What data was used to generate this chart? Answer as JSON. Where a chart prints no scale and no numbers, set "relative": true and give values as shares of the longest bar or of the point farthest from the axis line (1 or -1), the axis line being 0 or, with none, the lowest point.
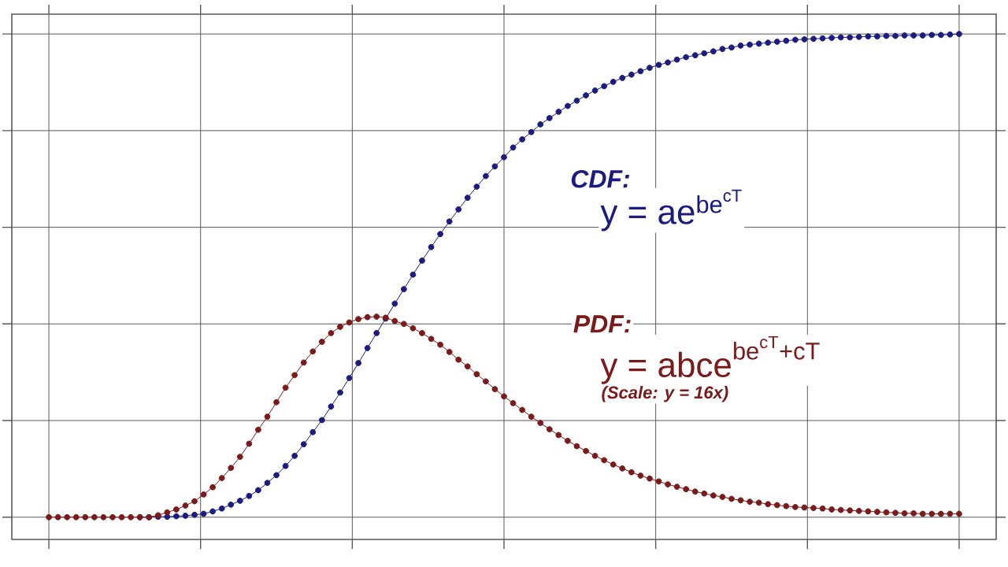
{
  "chart_data": {
    "type": "line",
    "relative": true,
    "grid": true,
    "marker": "circle",
    "tick_labels": false,
    "categories": [
      null,
      null,
      null,
      null,
      null,
      null,
      null,
      null,
      null,
      null,
      null,
      null,
      null,
      null,
      null,
      null,
      null,
      null,
      null,
      null,
      null,
      null,
      null,
      null,
      null,
      null,
      null,
      null,
      null,
      null,
      null,
      null,
      null,
      null,
      null,
      null,
      null,
      null,
      null,
      null,
      null,
      null,
      null,
      null,
      null,
      null,
      null,
      null,
      null,
      null,
      null,
      null,
      null,
      null,
      null,
      null,
      null,
      null,
      null,
      null,
      null,
      null,
      null,
      null,
      null,
      null,
      null,
      null,
      null,
      null,
      null,
      null,
      null,
      null,
      null,
      null,
      null,
      null,
      null,
      null,
      null,
      null,
      null,
      null,
      null,
      null,
      null,
      null,
      null,
      null,
      null,
      null,
      null,
      null,
      null,
      null,
      null,
      null,
      null,
      null,
      null
    ],
    "series": [
      {
        "color": "#1c1c80",
        "values": [
          null,
          null,
          null,
          null,
          null,
          null,
          null,
          null,
          null,
          null,
          0,
          0,
          0.001,
          0.001,
          0.002,
          0.003,
          0.005,
          0.007,
          0.012,
          0.018,
          0.026,
          0.034,
          0.044,
          0.056,
          0.071,
          0.087,
          0.106,
          0.127,
          0.151,
          0.176,
          0.201,
          0.229,
          0.258,
          0.288,
          0.319,
          0.35,
          0.381,
          0.411,
          0.442,
          0.472,
          0.502,
          0.531,
          0.559,
          0.586,
          0.612,
          0.637,
          0.661,
          0.684,
          0.706,
          0.726,
          0.745,
          0.765,
          0.782,
          0.797,
          0.813,
          0.826,
          0.839,
          0.851,
          0.862,
          0.873,
          0.883,
          0.892,
          0.901,
          0.909,
          0.916,
          0.923,
          0.93,
          0.936,
          0.941,
          0.947,
          0.952,
          0.956,
          0.96,
          0.964,
          0.969,
          0.972,
          0.976,
          0.978,
          0.98,
          0.982,
          0.984,
          0.986,
          0.988,
          0.989,
          0.99,
          0.991,
          0.992,
          0.993,
          0.993,
          0.994,
          0.995,
          0.995,
          0.996,
          0.996,
          0.997,
          0.997,
          0.997,
          0.998,
          0.998,
          0.999,
          1.0
        ]
      },
      {
        "color": "#7a1a1a",
        "values": [
          0,
          0,
          0,
          0,
          0,
          0,
          0,
          0,
          0,
          0,
          0,
          0,
          0.004,
          0.01,
          0.016,
          0.024,
          0.033,
          0.047,
          0.062,
          0.081,
          0.102,
          0.125,
          0.152,
          0.181,
          0.208,
          0.238,
          0.268,
          0.294,
          0.32,
          0.343,
          0.363,
          0.381,
          0.394,
          0.403,
          0.41,
          0.414,
          0.415,
          0.413,
          0.406,
          0.4,
          0.391,
          0.381,
          0.369,
          0.357,
          0.342,
          0.326,
          0.312,
          0.296,
          0.281,
          0.265,
          0.25,
          0.236,
          0.222,
          0.208,
          0.195,
          0.182,
          0.17,
          0.158,
          0.147,
          0.137,
          0.127,
          0.118,
          0.109,
          0.101,
          0.093,
          0.086,
          0.08,
          0.074,
          0.068,
          0.063,
          0.058,
          0.053,
          0.049,
          0.045,
          0.042,
          0.038,
          0.035,
          0.032,
          0.03,
          0.027,
          0.025,
          0.023,
          0.021,
          0.02,
          0.019,
          0.018,
          0.016,
          0.015,
          0.014,
          0.013,
          0.012,
          0.011,
          0.01,
          0.009,
          0.008,
          0.008,
          0.007,
          0.007,
          0.007,
          0.007,
          0.007
        ]
      }
    ],
    "annotations": [
      "CDF:",
      "\\text{y = ae}^{\\text{be}^{\\text{cT}}}",
      "PDF:",
      "\\text{y = abce}^{\\text{be}^{\\text{cT}}\\text{+cT}}",
      "(Scale: y = 16x)"
    ]
  }
}
